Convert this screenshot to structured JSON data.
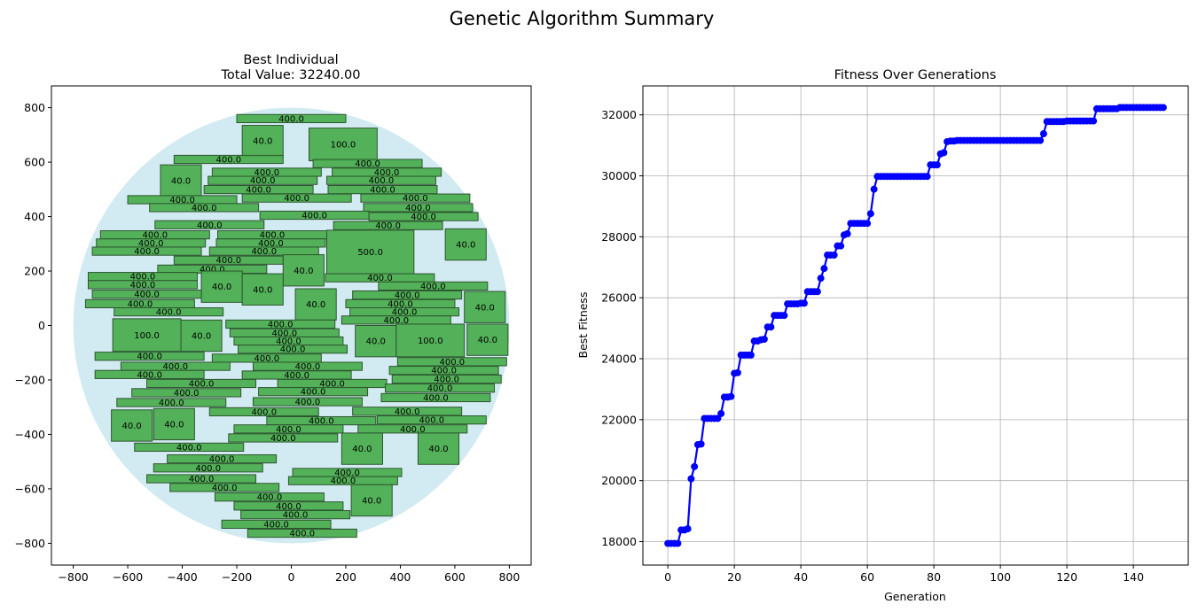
{
  "figure": {
    "suptitle": "Genetic Algorithm Summary"
  },
  "chart_data": [
    {
      "type": "scatter",
      "title_line1": "Best Individual",
      "title_line2": "Total Value: 32240.00",
      "xlim": [
        -880,
        880
      ],
      "ylim": [
        -880,
        880
      ],
      "xticks": [
        -800,
        -600,
        -400,
        -200,
        0,
        200,
        400,
        600,
        800
      ],
      "yticks": [
        -800,
        -600,
        -400,
        -200,
        0,
        200,
        400,
        600,
        800
      ],
      "grid": false,
      "circle": {
        "cx": 0,
        "cy": 0,
        "r": 800,
        "color": "#add8e6"
      },
      "rect_color": "#4caf50",
      "rect_edge": "#2e5530",
      "rects": [
        {
          "x": -200,
          "y": 745,
          "w": 400,
          "h": 30,
          "label": "400.0"
        },
        {
          "x": -180,
          "y": 620,
          "w": 150,
          "h": 115,
          "label": "40.0"
        },
        {
          "x": 65,
          "y": 605,
          "w": 250,
          "h": 120,
          "label": "100.0"
        },
        {
          "x": -430,
          "y": 595,
          "w": 400,
          "h": 30,
          "label": "400.0"
        },
        {
          "x": 80,
          "y": 580,
          "w": 400,
          "h": 30,
          "label": "400.0"
        },
        {
          "x": -480,
          "y": 475,
          "w": 150,
          "h": 115,
          "label": "40.0"
        },
        {
          "x": -290,
          "y": 548,
          "w": 400,
          "h": 30,
          "label": "400.0"
        },
        {
          "x": 150,
          "y": 548,
          "w": 400,
          "h": 30,
          "label": "400.0"
        },
        {
          "x": -305,
          "y": 518,
          "w": 400,
          "h": 30,
          "label": "400.0"
        },
        {
          "x": 130,
          "y": 518,
          "w": 400,
          "h": 30,
          "label": "400.0"
        },
        {
          "x": -320,
          "y": 484,
          "w": 400,
          "h": 30,
          "label": "400.0"
        },
        {
          "x": 135,
          "y": 484,
          "w": 400,
          "h": 30,
          "label": "400.0"
        },
        {
          "x": -180,
          "y": 453,
          "w": 400,
          "h": 30,
          "label": "400.0"
        },
        {
          "x": 255,
          "y": 453,
          "w": 400,
          "h": 30,
          "label": "400.0"
        },
        {
          "x": -600,
          "y": 447,
          "w": 400,
          "h": 30,
          "label": "400.0"
        },
        {
          "x": -520,
          "y": 418,
          "w": 400,
          "h": 30,
          "label": "400.0"
        },
        {
          "x": 265,
          "y": 418,
          "w": 400,
          "h": 30,
          "label": "400.0"
        },
        {
          "x": -115,
          "y": 390,
          "w": 400,
          "h": 30,
          "label": "400.0"
        },
        {
          "x": 285,
          "y": 385,
          "w": 400,
          "h": 30,
          "label": "400.0"
        },
        {
          "x": -500,
          "y": 355,
          "w": 400,
          "h": 30,
          "label": "400.0"
        },
        {
          "x": 155,
          "y": 352,
          "w": 400,
          "h": 30,
          "label": "400.0"
        },
        {
          "x": -700,
          "y": 318,
          "w": 400,
          "h": 30,
          "label": "400.0"
        },
        {
          "x": -270,
          "y": 318,
          "w": 400,
          "h": 30,
          "label": "400.0"
        },
        {
          "x": -715,
          "y": 288,
          "w": 400,
          "h": 30,
          "label": "400.0"
        },
        {
          "x": -275,
          "y": 288,
          "w": 400,
          "h": 30,
          "label": "400.0"
        },
        {
          "x": -730,
          "y": 258,
          "w": 400,
          "h": 30,
          "label": "400.0"
        },
        {
          "x": -300,
          "y": 258,
          "w": 400,
          "h": 30,
          "label": "400.0"
        },
        {
          "x": 130,
          "y": 190,
          "w": 320,
          "h": 160,
          "label": "500.0"
        },
        {
          "x": 565,
          "y": 240,
          "w": 150,
          "h": 115,
          "label": "40.0"
        },
        {
          "x": -430,
          "y": 225,
          "w": 400,
          "h": 30,
          "label": "400.0"
        },
        {
          "x": -490,
          "y": 192,
          "w": 400,
          "h": 30,
          "label": "400.0"
        },
        {
          "x": -30,
          "y": 145,
          "w": 150,
          "h": 115,
          "label": "40.0"
        },
        {
          "x": -745,
          "y": 165,
          "w": 400,
          "h": 30,
          "label": "400.0"
        },
        {
          "x": 125,
          "y": 160,
          "w": 400,
          "h": 30,
          "label": "400.0"
        },
        {
          "x": -745,
          "y": 135,
          "w": 400,
          "h": 30,
          "label": "400.0"
        },
        {
          "x": -330,
          "y": 85,
          "w": 150,
          "h": 115,
          "label": "40.0"
        },
        {
          "x": -180,
          "y": 75,
          "w": 150,
          "h": 115,
          "label": "40.0"
        },
        {
          "x": 320,
          "y": 130,
          "w": 400,
          "h": 30,
          "label": "400.0"
        },
        {
          "x": -730,
          "y": 100,
          "w": 400,
          "h": 30,
          "label": "400.0"
        },
        {
          "x": 225,
          "y": 97,
          "w": 400,
          "h": 30,
          "label": "400.0"
        },
        {
          "x": 15,
          "y": 20,
          "w": 150,
          "h": 115,
          "label": "40.0"
        },
        {
          "x": -755,
          "y": 65,
          "w": 400,
          "h": 30,
          "label": "400.0"
        },
        {
          "x": 200,
          "y": 65,
          "w": 400,
          "h": 30,
          "label": "400.0"
        },
        {
          "x": 635,
          "y": 10,
          "w": 150,
          "h": 115,
          "label": "40.0"
        },
        {
          "x": -650,
          "y": 35,
          "w": 400,
          "h": 30,
          "label": "400.0"
        },
        {
          "x": 215,
          "y": 35,
          "w": 400,
          "h": 30,
          "label": "400.0"
        },
        {
          "x": 185,
          "y": 5,
          "w": 400,
          "h": 30,
          "label": "400.0"
        },
        {
          "x": -240,
          "y": -10,
          "w": 400,
          "h": 30,
          "label": "400.0"
        },
        {
          "x": -655,
          "y": -95,
          "w": 250,
          "h": 120,
          "label": "100.0"
        },
        {
          "x": -405,
          "y": -95,
          "w": 150,
          "h": 115,
          "label": "40.0"
        },
        {
          "x": -225,
          "y": -42,
          "w": 400,
          "h": 30,
          "label": "400.0"
        },
        {
          "x": 235,
          "y": -115,
          "w": 150,
          "h": 115,
          "label": "40.0"
        },
        {
          "x": 385,
          "y": -115,
          "w": 250,
          "h": 120,
          "label": "100.0"
        },
        {
          "x": 645,
          "y": -110,
          "w": 150,
          "h": 115,
          "label": "40.0"
        },
        {
          "x": -210,
          "y": -72,
          "w": 400,
          "h": 30,
          "label": "400.0"
        },
        {
          "x": -195,
          "y": -102,
          "w": 400,
          "h": 30,
          "label": "400.0"
        },
        {
          "x": -720,
          "y": -128,
          "w": 400,
          "h": 30,
          "label": "400.0"
        },
        {
          "x": -290,
          "y": -135,
          "w": 400,
          "h": 30,
          "label": "400.0"
        },
        {
          "x": 390,
          "y": -148,
          "w": 400,
          "h": 30,
          "label": "400.0"
        },
        {
          "x": -625,
          "y": -165,
          "w": 400,
          "h": 30,
          "label": "400.0"
        },
        {
          "x": -140,
          "y": -165,
          "w": 400,
          "h": 30,
          "label": "400.0"
        },
        {
          "x": 360,
          "y": -180,
          "w": 400,
          "h": 30,
          "label": "400.0"
        },
        {
          "x": -720,
          "y": -195,
          "w": 400,
          "h": 30,
          "label": "400.0"
        },
        {
          "x": -180,
          "y": -197,
          "w": 400,
          "h": 30,
          "label": "400.0"
        },
        {
          "x": 370,
          "y": -212,
          "w": 400,
          "h": 30,
          "label": "400.0"
        },
        {
          "x": -530,
          "y": -228,
          "w": 400,
          "h": 30,
          "label": "400.0"
        },
        {
          "x": -50,
          "y": -228,
          "w": 400,
          "h": 30,
          "label": "400.0"
        },
        {
          "x": -120,
          "y": -258,
          "w": 400,
          "h": 30,
          "label": "400.0"
        },
        {
          "x": 345,
          "y": -245,
          "w": 400,
          "h": 30,
          "label": "400.0"
        },
        {
          "x": -585,
          "y": -262,
          "w": 400,
          "h": 30,
          "label": "400.0"
        },
        {
          "x": 330,
          "y": -280,
          "w": 400,
          "h": 30,
          "label": "400.0"
        },
        {
          "x": -640,
          "y": -298,
          "w": 400,
          "h": 30,
          "label": "400.0"
        },
        {
          "x": -140,
          "y": -295,
          "w": 400,
          "h": 30,
          "label": "400.0"
        },
        {
          "x": -660,
          "y": -425,
          "w": 150,
          "h": 115,
          "label": "40.0"
        },
        {
          "x": -505,
          "y": -420,
          "w": 150,
          "h": 115,
          "label": "40.0"
        },
        {
          "x": -300,
          "y": -332,
          "w": 400,
          "h": 30,
          "label": "400.0"
        },
        {
          "x": 225,
          "y": -330,
          "w": 400,
          "h": 30,
          "label": "400.0"
        },
        {
          "x": -90,
          "y": -365,
          "w": 400,
          "h": 30,
          "label": "400.0"
        },
        {
          "x": 315,
          "y": -362,
          "w": 400,
          "h": 30,
          "label": "400.0"
        },
        {
          "x": -210,
          "y": -395,
          "w": 400,
          "h": 30,
          "label": "400.0"
        },
        {
          "x": 245,
          "y": -395,
          "w": 400,
          "h": 30,
          "label": "400.0"
        },
        {
          "x": -230,
          "y": -428,
          "w": 400,
          "h": 30,
          "label": "400.0"
        },
        {
          "x": 185,
          "y": -510,
          "w": 150,
          "h": 115,
          "label": "40.0"
        },
        {
          "x": 465,
          "y": -510,
          "w": 150,
          "h": 115,
          "label": "40.0"
        },
        {
          "x": -575,
          "y": -462,
          "w": 400,
          "h": 30,
          "label": "400.0"
        },
        {
          "x": -455,
          "y": -505,
          "w": 400,
          "h": 30,
          "label": "400.0"
        },
        {
          "x": -505,
          "y": -538,
          "w": 400,
          "h": 30,
          "label": "400.0"
        },
        {
          "x": 5,
          "y": -555,
          "w": 400,
          "h": 30,
          "label": "400.0"
        },
        {
          "x": -530,
          "y": -578,
          "w": 400,
          "h": 30,
          "label": "400.0"
        },
        {
          "x": -10,
          "y": -585,
          "w": 400,
          "h": 30,
          "label": "400.0"
        },
        {
          "x": -445,
          "y": -610,
          "w": 400,
          "h": 30,
          "label": "400.0"
        },
        {
          "x": 220,
          "y": -700,
          "w": 150,
          "h": 115,
          "label": "40.0"
        },
        {
          "x": -280,
          "y": -645,
          "w": 400,
          "h": 30,
          "label": "400.0"
        },
        {
          "x": -210,
          "y": -678,
          "w": 400,
          "h": 30,
          "label": "400.0"
        },
        {
          "x": -185,
          "y": -710,
          "w": 400,
          "h": 30,
          "label": "400.0"
        },
        {
          "x": -255,
          "y": -745,
          "w": 400,
          "h": 30,
          "label": "400.0"
        },
        {
          "x": -160,
          "y": -778,
          "w": 400,
          "h": 30,
          "label": "400.0"
        }
      ]
    },
    {
      "type": "line",
      "title": "Fitness Over Generations",
      "xlabel": "Generation",
      "ylabel": "Best Fitness",
      "xlim": [
        -7.5,
        156.5
      ],
      "ylim": [
        17230,
        32950
      ],
      "xticks": [
        0,
        20,
        40,
        60,
        80,
        100,
        120,
        140
      ],
      "yticks": [
        18000,
        20000,
        22000,
        24000,
        26000,
        28000,
        30000,
        32000
      ],
      "grid": true,
      "line_color": "#0000ff",
      "marker": "circle",
      "x_start": 0,
      "values": [
        17940,
        17940,
        17940,
        17940,
        18380,
        18380,
        18420,
        20060,
        20460,
        21180,
        21200,
        22040,
        22040,
        22040,
        22040,
        22040,
        22200,
        22740,
        22740,
        22760,
        23520,
        23540,
        24120,
        24120,
        24120,
        24120,
        24580,
        24580,
        24620,
        24640,
        25040,
        25040,
        25420,
        25420,
        25420,
        25420,
        25800,
        25800,
        25800,
        25800,
        25820,
        25820,
        26200,
        26200,
        26200,
        26200,
        26640,
        26960,
        27400,
        27400,
        27400,
        27700,
        27700,
        28060,
        28100,
        28440,
        28440,
        28440,
        28440,
        28440,
        28440,
        28760,
        29560,
        29980,
        29980,
        29980,
        29980,
        29980,
        29980,
        29980,
        29980,
        29980,
        29980,
        29980,
        29980,
        29980,
        29980,
        29980,
        29980,
        30360,
        30360,
        30360,
        30720,
        30760,
        31120,
        31140,
        31140,
        31160,
        31160,
        31160,
        31160,
        31160,
        31160,
        31160,
        31160,
        31160,
        31160,
        31160,
        31160,
        31160,
        31160,
        31160,
        31160,
        31160,
        31160,
        31160,
        31160,
        31160,
        31160,
        31160,
        31160,
        31160,
        31160,
        31380,
        31780,
        31780,
        31780,
        31780,
        31780,
        31780,
        31800,
        31800,
        31800,
        31800,
        31800,
        31800,
        31800,
        31800,
        31800,
        32200,
        32200,
        32200,
        32200,
        32200,
        32200,
        32200,
        32240,
        32240,
        32240,
        32240,
        32240,
        32240,
        32240,
        32240,
        32240,
        32240,
        32240,
        32240,
        32240,
        32240
      ]
    }
  ]
}
